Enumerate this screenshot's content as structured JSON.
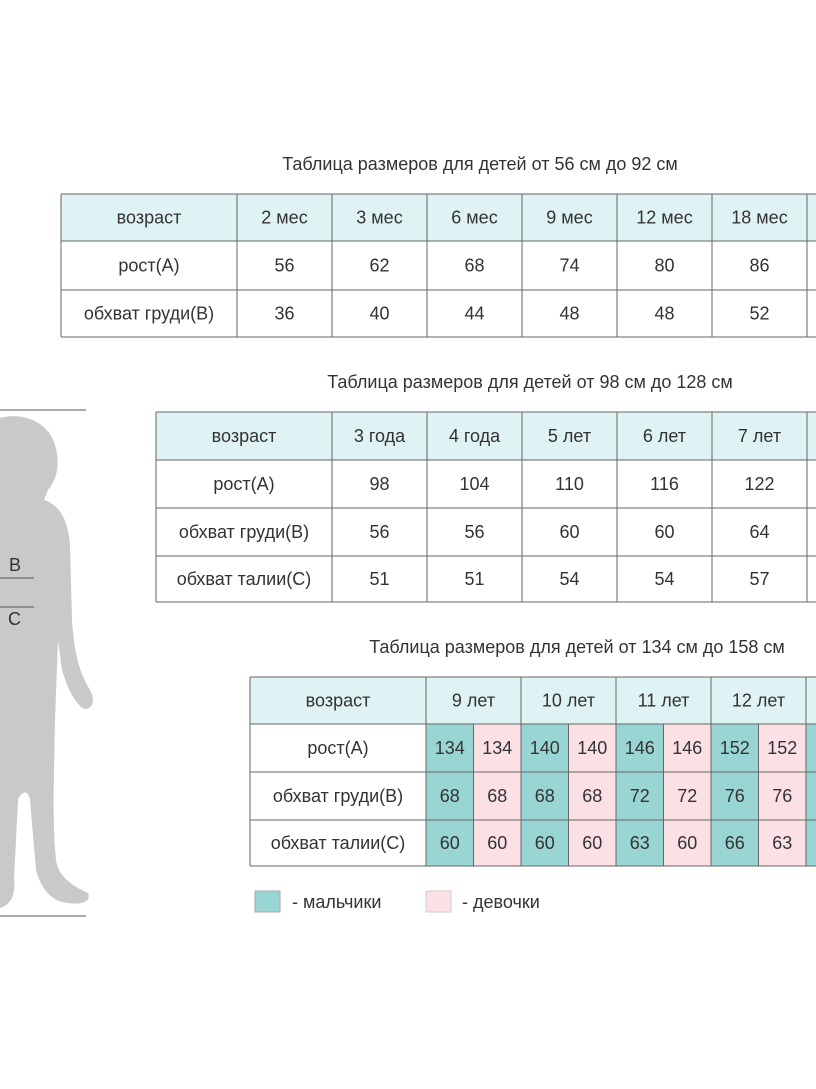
{
  "figure": {
    "labels": [
      "B",
      "C"
    ]
  },
  "tables": [
    {
      "title": "Таблица размеров для детей от 56 см до 92 см",
      "header": [
        "возраст",
        "2 мес",
        "3 мес",
        "6 мес",
        "9 мес",
        "12 мес",
        "18 мес"
      ],
      "rows": [
        [
          "рост(A)",
          56,
          62,
          68,
          74,
          80,
          86
        ],
        [
          "обхват груди(B)",
          36,
          40,
          44,
          48,
          48,
          52
        ]
      ]
    },
    {
      "title": "Таблица размеров для детей от 98 см до 128 см",
      "header": [
        "возраст",
        "3 года",
        "4 года",
        "5 лет",
        "6 лет",
        "7 лет"
      ],
      "rows": [
        [
          "рост(A)",
          98,
          104,
          110,
          116,
          122
        ],
        [
          "обхват груди(B)",
          56,
          56,
          60,
          60,
          64
        ],
        [
          "обхват талии(C)",
          51,
          51,
          54,
          54,
          57
        ]
      ]
    },
    {
      "title": "Таблица размеров для детей от 134 см до 158 см",
      "header": [
        "возраст",
        "9 лет",
        "10 лет",
        "11 лет",
        "12 лет"
      ],
      "rows": [
        [
          "рост(A)",
          134,
          134,
          140,
          140,
          146,
          146,
          152,
          152
        ],
        [
          "обхват груди(B)",
          68,
          68,
          68,
          68,
          72,
          72,
          76,
          76
        ],
        [
          "обхват талии(C)",
          60,
          60,
          60,
          60,
          63,
          60,
          66,
          63
        ]
      ]
    }
  ],
  "legend": {
    "boys": "- мальчики",
    "girls": "- девочки"
  }
}
